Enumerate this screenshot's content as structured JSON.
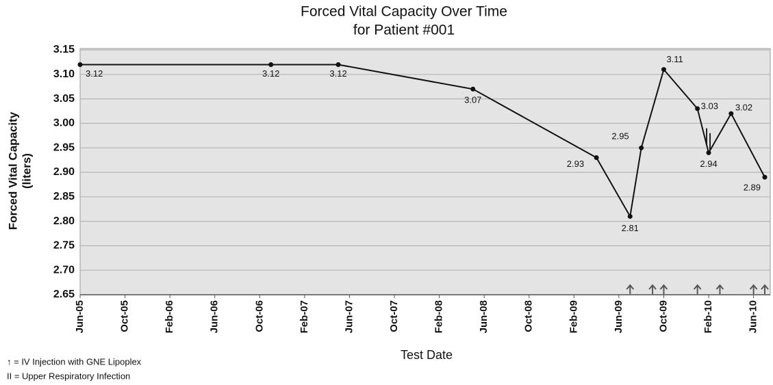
{
  "chart_data": {
    "type": "line",
    "title": [
      "Forced Vital Capacity Over Time",
      "for Patient #001"
    ],
    "xlabel": "Test Date",
    "ylabel": [
      "Forced Vital Capacity",
      "(liters)"
    ],
    "x": [
      "2005-06",
      "2006-11",
      "2007-05",
      "2008-05",
      "2009-04",
      "2009-07",
      "2009-08",
      "2009-10",
      "2010-01",
      "2010-02",
      "2010-04",
      "2010-07"
    ],
    "values": [
      3.12,
      3.12,
      3.12,
      3.07,
      2.93,
      2.81,
      2.95,
      3.11,
      3.03,
      2.94,
      3.02,
      2.89
    ],
    "color": "#111111",
    "xlim": [
      "2005-06",
      "2010-07"
    ],
    "xticks": [
      {
        "value": "2005-06",
        "label": "Jun-05"
      },
      {
        "value": "2005-10",
        "label": "Oct-05"
      },
      {
        "value": "2006-02",
        "label": "Feb-06"
      },
      {
        "value": "2006-06",
        "label": "Jun-06"
      },
      {
        "value": "2006-10",
        "label": "Oct-06"
      },
      {
        "value": "2007-02",
        "label": "Feb-07"
      },
      {
        "value": "2007-06",
        "label": "Jun-07"
      },
      {
        "value": "2007-10",
        "label": "Oct-07"
      },
      {
        "value": "2008-02",
        "label": "Feb-08"
      },
      {
        "value": "2008-06",
        "label": "Jun-08"
      },
      {
        "value": "2008-10",
        "label": "Oct-08"
      },
      {
        "value": "2009-02",
        "label": "Feb-09"
      },
      {
        "value": "2009-06",
        "label": "Jun-09"
      },
      {
        "value": "2009-10",
        "label": "Oct-09"
      },
      {
        "value": "2010-02",
        "label": "Feb-10"
      },
      {
        "value": "2010-06",
        "label": "Jun-10"
      }
    ],
    "ylim": [
      2.65,
      3.15
    ],
    "yticks": [
      2.65,
      {
        "value": 2.7,
        "label": "2.70"
      },
      2.75,
      {
        "value": 2.8,
        "label": "2.80"
      },
      2.85,
      {
        "value": 2.9,
        "label": "2.90"
      },
      2.95,
      {
        "value": 3.0,
        "label": "3.00"
      },
      3.05,
      {
        "value": 3.1,
        "label": "3.10"
      },
      3.15
    ],
    "grid": true,
    "injections": [
      "2009-07",
      "2009-09",
      "2009-10",
      "2010-01",
      "2010-03",
      "2010-06",
      "2010-07"
    ],
    "infections": [
      "2010-02"
    ],
    "legend_notes": [
      "↑ = IV Injection with GNE Lipoplex",
      "II = Upper Respiratory Infection"
    ]
  }
}
